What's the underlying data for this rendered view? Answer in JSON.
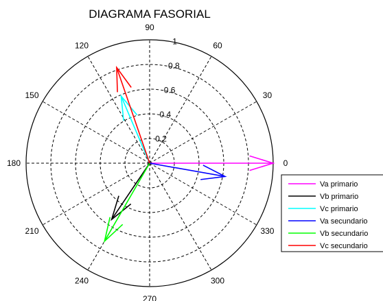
{
  "chart_data": {
    "type": "polar-phasor",
    "title": "DIAGRAMA FASORIAL",
    "rlim": [
      0,
      1
    ],
    "radial_ticks": [
      0.2,
      0.4,
      0.6,
      0.8,
      1
    ],
    "radial_tick_labels": [
      "0.2",
      "0.4",
      "0.6",
      "0.8",
      "1"
    ],
    "angle_ticks": [
      0,
      30,
      60,
      90,
      120,
      150,
      180,
      210,
      240,
      270,
      300,
      330
    ],
    "angle_tick_labels": [
      "0",
      "30",
      "60",
      "90",
      "120",
      "150",
      "180",
      "210",
      "240",
      "270",
      "300",
      "330"
    ],
    "grid": true,
    "legend_position": "right-bottom",
    "series": [
      {
        "name": "Va primario",
        "color": "#ff00ff",
        "angle_deg": 0,
        "magnitude": 1.0
      },
      {
        "name": "Vb primario",
        "color": "#000000",
        "angle_deg": 236,
        "magnitude": 0.55
      },
      {
        "name": "Vc primario",
        "color": "#00ffff",
        "angle_deg": 113,
        "magnitude": 0.59
      },
      {
        "name": "Va secundario",
        "color": "#0000ff",
        "angle_deg": -10,
        "magnitude": 0.62
      },
      {
        "name": "Vb secundario",
        "color": "#00ff00",
        "angle_deg": 240,
        "magnitude": 0.73
      },
      {
        "name": "Vc secundario",
        "color": "#ff0000",
        "angle_deg": 109,
        "magnitude": 0.82
      }
    ]
  }
}
